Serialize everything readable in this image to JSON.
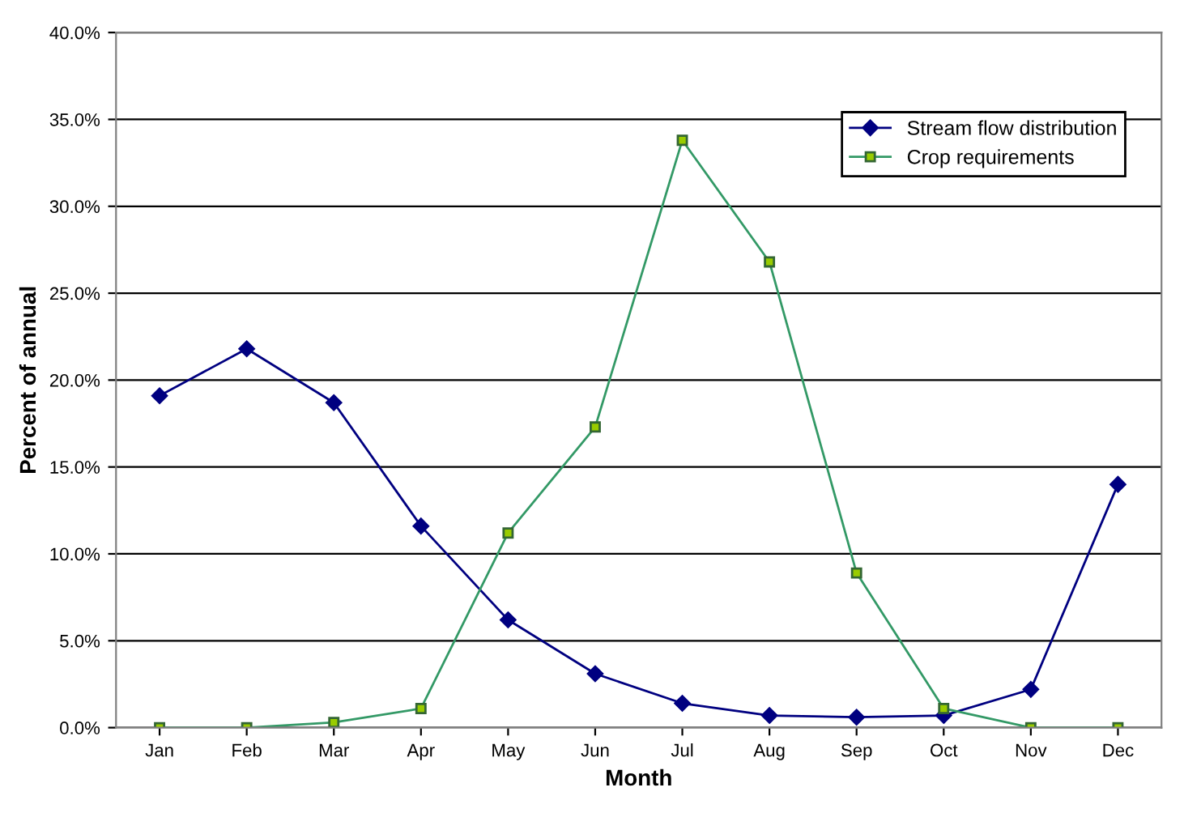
{
  "chart_data": {
    "type": "line",
    "xlabel": "Month",
    "ylabel": "Percent of annual",
    "categories": [
      "Jan",
      "Feb",
      "Mar",
      "Apr",
      "May",
      "Jun",
      "Jul",
      "Aug",
      "Sep",
      "Oct",
      "Nov",
      "Dec"
    ],
    "series": [
      {
        "name": "Stream flow distribution",
        "color": "#000080",
        "marker": "diamond",
        "values": [
          19.1,
          21.8,
          18.7,
          11.6,
          6.2,
          3.1,
          1.4,
          0.7,
          0.6,
          0.7,
          2.2,
          14.0
        ]
      },
      {
        "name": "Crop requirements",
        "color": "#339966",
        "marker": "square",
        "values": [
          0,
          0,
          0.3,
          1.1,
          11.2,
          17.3,
          33.8,
          26.8,
          8.9,
          1.1,
          0,
          0
        ]
      }
    ],
    "ylim": [
      0,
      40
    ],
    "yticks": [
      {
        "value": 0,
        "label": "0.0%"
      },
      {
        "value": 5,
        "label": "5.0%"
      },
      {
        "value": 10,
        "label": "10.0%"
      },
      {
        "value": 15,
        "label": "15.0%"
      },
      {
        "value": 20,
        "label": "20.0%"
      },
      {
        "value": 25,
        "label": "25.0%"
      },
      {
        "value": 30,
        "label": "30.0%"
      },
      {
        "value": 35,
        "label": "35.0%"
      },
      {
        "value": 40,
        "label": "40.0%"
      }
    ],
    "grid": "y",
    "legend": "top right",
    "line_style": "solid"
  }
}
